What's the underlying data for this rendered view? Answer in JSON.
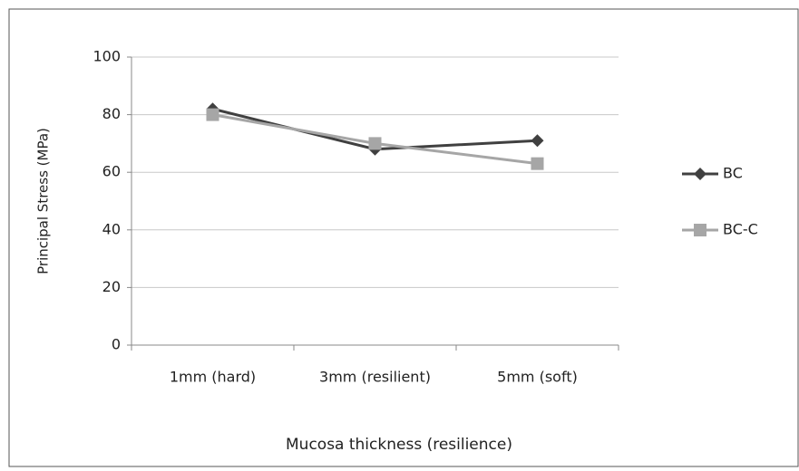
{
  "chart_data": {
    "type": "line",
    "xlabel": "Mucosa thickness (resilience)",
    "ylabel": "Principal Stress (MPa)",
    "categories": [
      "1mm (hard)",
      "3mm (resilient)",
      "5mm (soft)"
    ],
    "series": [
      {
        "name": "BC",
        "color": "#404040",
        "marker": "diamond",
        "values": [
          82,
          68,
          71
        ]
      },
      {
        "name": "BC-C",
        "color": "#a6a6a6",
        "marker": "square",
        "values": [
          80,
          70,
          63
        ]
      }
    ],
    "ylim": [
      0,
      100
    ],
    "yticks": [
      0,
      20,
      40,
      60,
      80,
      100
    ],
    "grid": true,
    "legend": "right"
  }
}
